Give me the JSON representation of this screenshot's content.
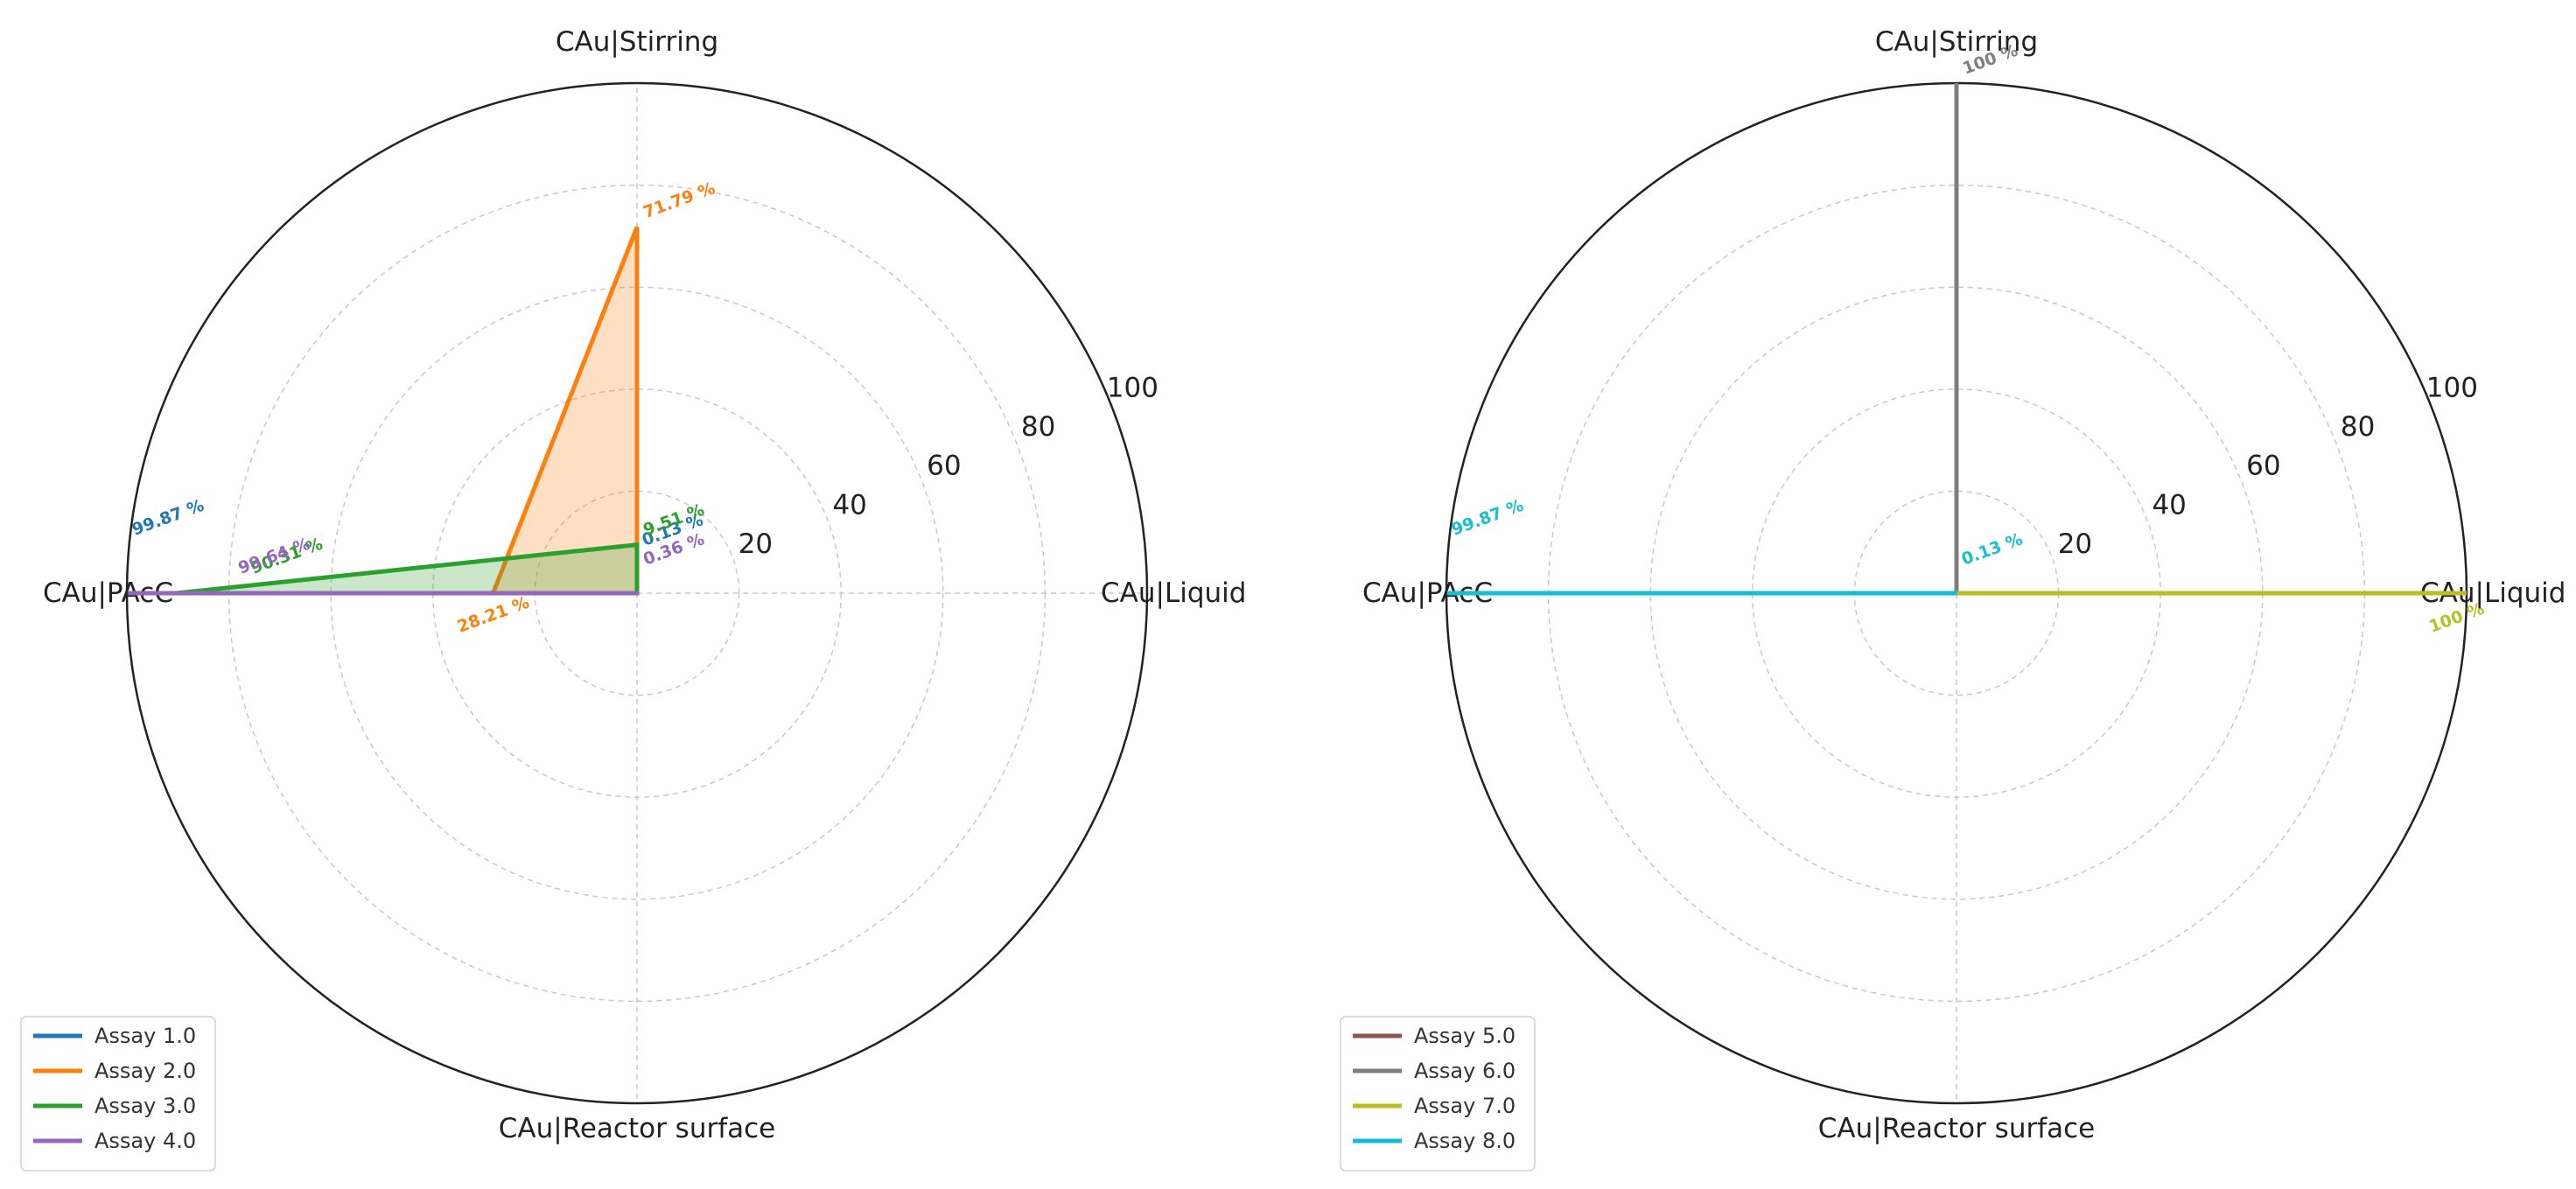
{
  "chart_data": [
    {
      "type": "radar",
      "axes": [
        "CAu|Stirring",
        "CAu|Liquid",
        "CAu|Reactor surface",
        "CAu|PAcC"
      ],
      "rlim": [
        0,
        100
      ],
      "r_ticks": [
        "20",
        "40",
        "60",
        "80",
        "100"
      ],
      "grid": true,
      "legend_position": "lower-left",
      "series": [
        {
          "name": "Assay 1.0",
          "color": "#1f77b4",
          "values": [
            0,
            0.13,
            0,
            99.87
          ],
          "labels": [
            "",
            "0.13 %",
            "",
            "99.87 %"
          ],
          "fill": false
        },
        {
          "name": "Assay 2.0",
          "color": "#ff7f0e",
          "values": [
            71.79,
            0,
            0,
            28.21
          ],
          "labels": [
            "71.79 %",
            "",
            "",
            "28.21 %"
          ],
          "fill": true
        },
        {
          "name": "Assay 3.0",
          "color": "#2ca02c",
          "values": [
            9.51,
            0,
            0,
            90.31
          ],
          "labels": [
            "9.51 %",
            "",
            "",
            "90.31 %"
          ],
          "fill": true
        },
        {
          "name": "Assay 4.0",
          "color": "#9467bd",
          "values": [
            0,
            0.36,
            0,
            99.64
          ],
          "labels": [
            "",
            "0.36 %",
            "",
            "99.64 %"
          ],
          "fill": false
        }
      ]
    },
    {
      "type": "radar",
      "axes": [
        "CAu|Stirring",
        "CAu|Liquid",
        "CAu|Reactor surface",
        "CAu|PAcC"
      ],
      "rlim": [
        0,
        100
      ],
      "r_ticks": [
        "20",
        "40",
        "60",
        "80",
        "100"
      ],
      "grid": true,
      "legend_position": "lower-left",
      "series": [
        {
          "name": "Assay 5.0",
          "color": "#8c564b",
          "values": [
            0,
            0,
            0,
            0
          ],
          "labels": [
            "",
            "",
            "",
            ""
          ],
          "fill": false
        },
        {
          "name": "Assay 6.0",
          "color": "#7f7f7f",
          "values": [
            100,
            0,
            0,
            0
          ],
          "labels": [
            "100 %",
            "",
            "",
            ""
          ],
          "fill": false
        },
        {
          "name": "Assay 7.0",
          "color": "#bcbd22",
          "values": [
            0,
            100,
            0,
            0
          ],
          "labels": [
            "",
            "100 %",
            "",
            ""
          ],
          "fill": false
        },
        {
          "name": "Assay 8.0",
          "color": "#17becf",
          "values": [
            0,
            0.13,
            0,
            99.87
          ],
          "labels": [
            "",
            "0.13 %",
            "",
            "99.87 %"
          ],
          "fill": false
        }
      ]
    }
  ]
}
